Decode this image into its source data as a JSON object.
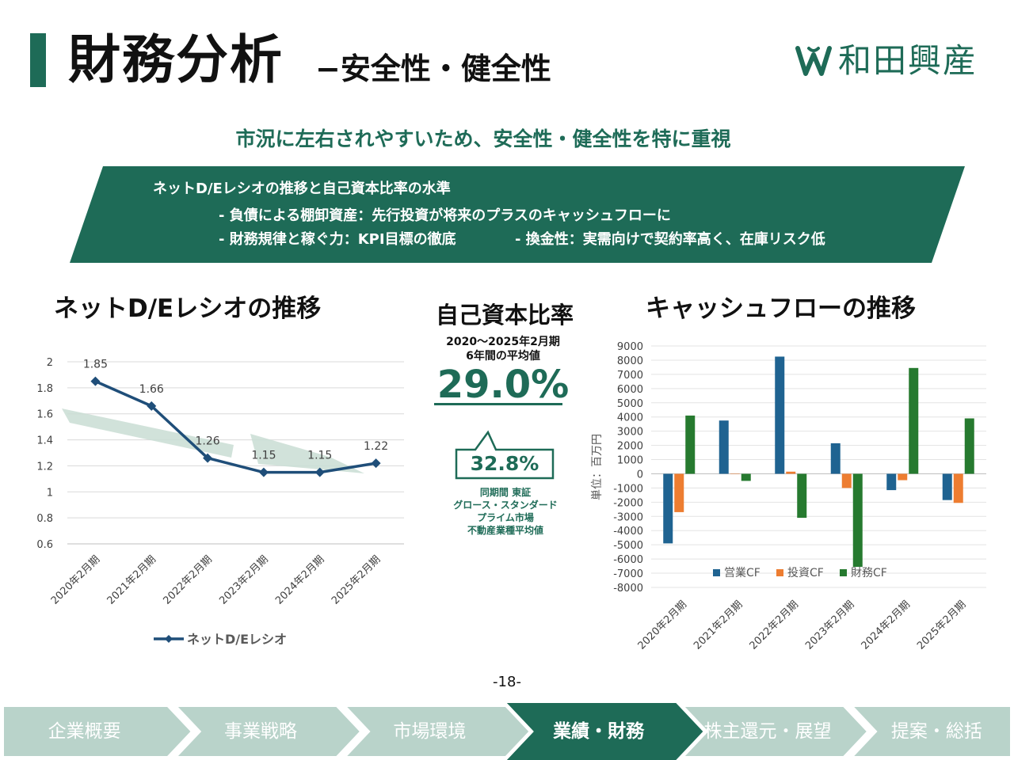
{
  "header": {
    "title": "財務分析",
    "subtitle": "−安全性・健全性",
    "logo_text": "和田興産",
    "accent_color": "#1e6b57"
  },
  "headline": "市況に左右されやすいため、安全性・健全性を特に重視",
  "banner": {
    "heading": "ネットD/Eレシオの推移と自己資本比率の水準",
    "line1": "- 負債による棚卸資産：先行投資が将来のプラスのキャッシュフローに",
    "line2": "- 財務規律と稼ぐ力：KPI目標の徹底",
    "line3": "- 換金性：実需向けで契約率高く、在庫リスク低"
  },
  "equity": {
    "title": "自己資本比率",
    "period_line1": "2020〜2025年2月期",
    "period_line2": "6年間の平均値",
    "value": "29.0%",
    "comparison_value": "32.8%",
    "comparison_note": "同期間 東証\nグロース・スタンダード\nプライム市場\n不動産業種平均値"
  },
  "chart_data": [
    {
      "type": "line",
      "title": "ネットD/Eレシオの推移",
      "categories": [
        "2020年2月期",
        "2021年2月期",
        "2022年2月期",
        "2023年2月期",
        "2024年2月期",
        "2025年2月期"
      ],
      "series": [
        {
          "name": "ネットD/Eレシオ",
          "values": [
            1.85,
            1.66,
            1.26,
            1.15,
            1.15,
            1.22
          ],
          "color": "#1f4e79"
        }
      ],
      "y_ticks": [
        "2",
        "1.8",
        "1.6",
        "1.4",
        "1.2",
        "1",
        "0.8",
        "0.6"
      ],
      "ylim": [
        0.6,
        2.0
      ],
      "data_labels": [
        "1.85",
        "1.66",
        "1.26",
        "1.15",
        "1.15",
        "1.22"
      ],
      "grid": true,
      "legend_position": "bottom",
      "trend_arrow_color": "#c9ddd4"
    },
    {
      "type": "bar",
      "title": "キャッシュフローの推移",
      "ylabel": "単位：百万円",
      "categories": [
        "2020年2月期",
        "2021年2月期",
        "2022年2月期",
        "2023年2月期",
        "2024年2月期",
        "2025年2月期"
      ],
      "series": [
        {
          "name": "営業CF",
          "values": [
            -4900,
            3750,
            8250,
            2150,
            -1150,
            -1850
          ],
          "color": "#1f6391"
        },
        {
          "name": "投資CF",
          "values": [
            -2700,
            0,
            150,
            -1000,
            -450,
            -2050
          ],
          "color": "#ed7d31"
        },
        {
          "name": "財務CF",
          "values": [
            4100,
            -500,
            -3100,
            -6550,
            7450,
            3900
          ],
          "color": "#267a2f"
        }
      ],
      "y_ticks": [
        "9000",
        "8000",
        "7000",
        "6000",
        "5000",
        "4000",
        "3000",
        "2000",
        "1000",
        "0",
        "-1000",
        "-2000",
        "-3000",
        "-4000",
        "-5000",
        "-6000",
        "-7000",
        "-8000"
      ],
      "ylim": [
        -8000,
        9000
      ],
      "grid": true,
      "legend_position": "bottom-inside"
    }
  ],
  "page_number": "-18-",
  "nav": {
    "items": [
      {
        "label": "企業概要",
        "active": false
      },
      {
        "label": "事業戦略",
        "active": false
      },
      {
        "label": "市場環境",
        "active": false
      },
      {
        "label": "業績・財務",
        "active": true
      },
      {
        "label": "株主還元・展望",
        "active": false
      },
      {
        "label": "提案・総括",
        "active": false
      }
    ],
    "active_color": "#1e6b57",
    "inactive_color": "#b9d3ca"
  }
}
